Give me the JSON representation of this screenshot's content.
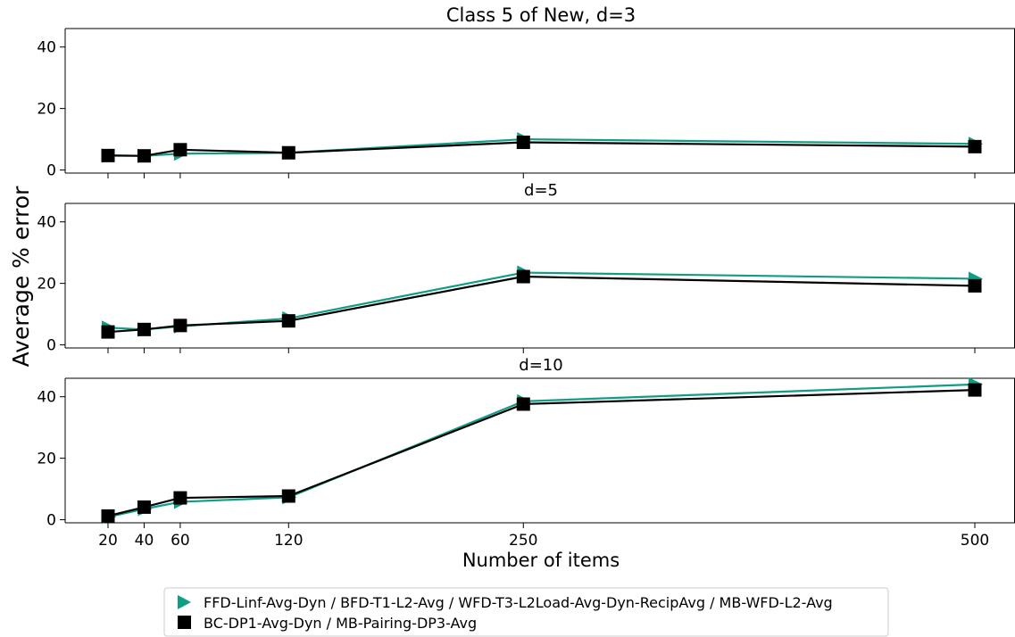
{
  "chart_data": {
    "type": "line",
    "xlabel": "Number of items",
    "ylabel": "Average % error",
    "x": [
      20,
      40,
      60,
      120,
      250,
      500
    ],
    "x_tick_labels": [
      "20",
      "40",
      "60",
      "120",
      "250",
      "500"
    ],
    "ylim": [
      -1,
      46
    ],
    "yticks": [
      0,
      20,
      40
    ],
    "grid": false,
    "legend_position": "bottom-center",
    "series_styles": [
      {
        "marker": "triangle-right",
        "color": "#0f9e85"
      },
      {
        "marker": "square",
        "color": "#000000"
      }
    ],
    "legend": [
      "FFD-Linf-Avg-Dyn / BFD-T1-L2-Avg / WFD-T3-L2Load-Avg-Dyn-RecipAvg / MB-WFD-L2-Avg",
      "BC-DP1-Avg-Dyn / MB-Pairing-DP3-Avg"
    ],
    "panels": [
      {
        "title": "Class 5 of New, d=3",
        "series": [
          {
            "values": [
              4.7,
              4.6,
              5.3,
              5.6,
              10.0,
              8.5
            ]
          },
          {
            "values": [
              4.7,
              4.6,
              6.6,
              5.6,
              9.0,
              7.6
            ]
          }
        ]
      },
      {
        "title": "d=5",
        "series": [
          {
            "values": [
              5.6,
              5.0,
              6.0,
              8.6,
              23.5,
              21.5
            ]
          },
          {
            "values": [
              4.2,
              5.0,
              6.3,
              7.8,
              22.2,
              19.2
            ]
          }
        ]
      },
      {
        "title": "d=10",
        "series": [
          {
            "values": [
              0.9,
              3.5,
              5.8,
              7.3,
              38.5,
              44.0
            ]
          },
          {
            "values": [
              1.2,
              4.1,
              7.1,
              7.7,
              37.6,
              42.2
            ]
          }
        ]
      }
    ]
  }
}
